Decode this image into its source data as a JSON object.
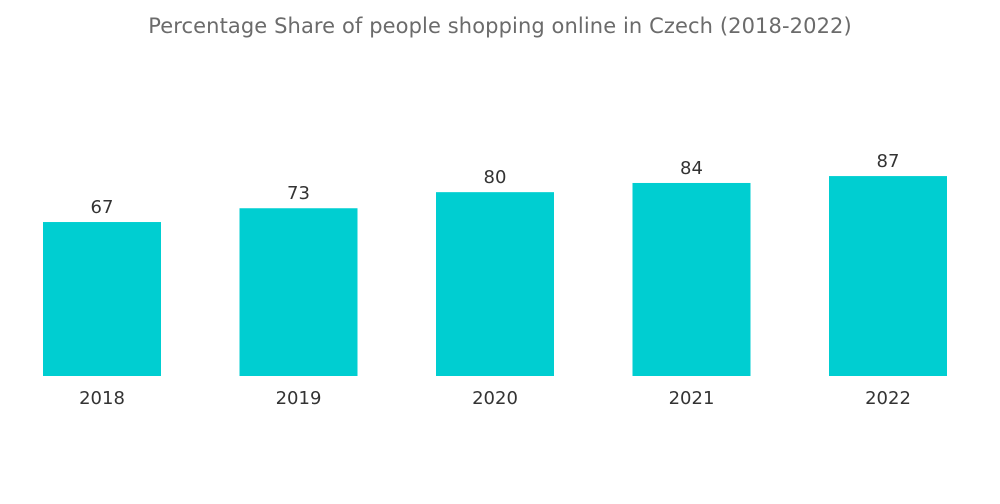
{
  "chart_data": {
    "type": "bar",
    "title": "Percentage Share of people shopping online in Czech (2018-2022)",
    "categories": [
      "2018",
      "2019",
      "2020",
      "2021",
      "2022"
    ],
    "values": [
      67,
      73,
      80,
      84,
      87
    ],
    "xlabel": "",
    "ylabel": "",
    "ylim": [
      0,
      100
    ],
    "grid": false,
    "bar_color": "#00CED1",
    "data_labels": true
  }
}
